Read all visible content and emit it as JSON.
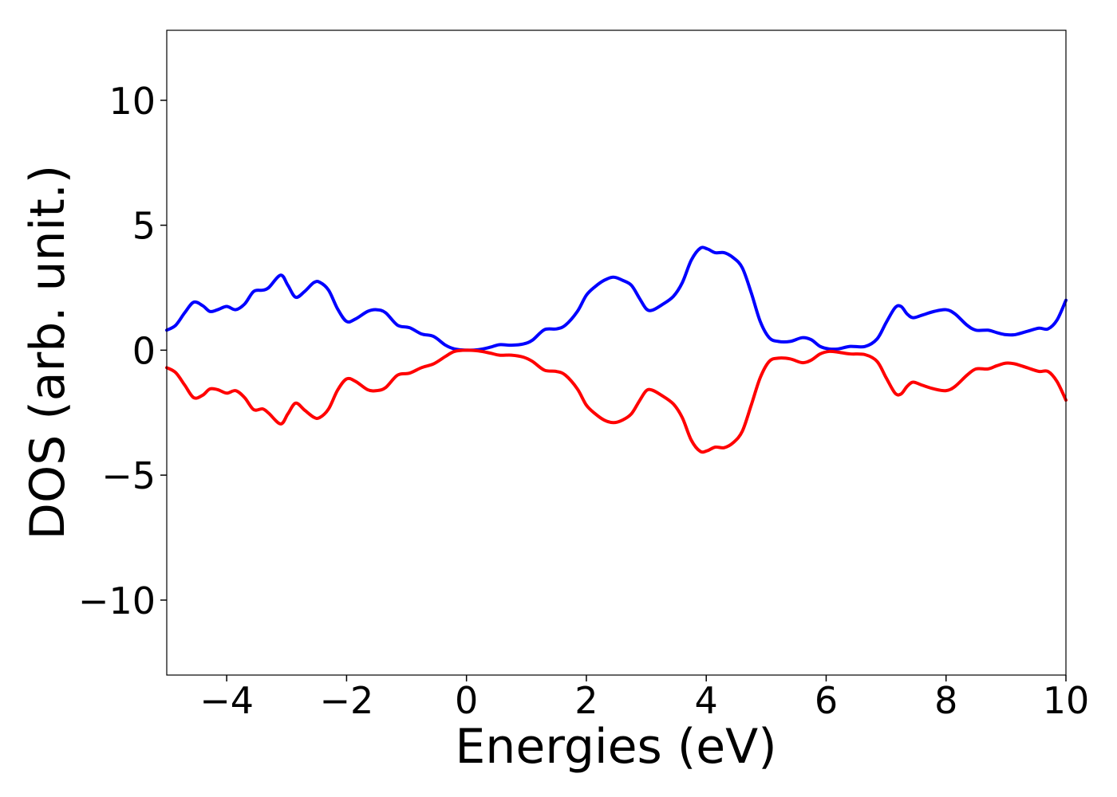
{
  "chart_data": {
    "type": "line",
    "title": "",
    "xlabel": "Energies (eV)",
    "ylabel": "DOS (arb. unit.)",
    "xlim": [
      -5,
      10
    ],
    "ylim": [
      -13,
      12.8
    ],
    "x_ticks": [
      -4,
      -2,
      0,
      2,
      4,
      6,
      8,
      10
    ],
    "x_tick_labels": [
      "−4",
      "−2",
      "0",
      "2",
      "4",
      "6",
      "8",
      "10"
    ],
    "y_ticks": [
      -10,
      -5,
      0,
      5,
      10
    ],
    "y_tick_labels": [
      "−10",
      "−5",
      "0",
      "5",
      "10"
    ],
    "grid": false,
    "legend": "none",
    "series": [
      {
        "color": "#0000ff",
        "points": [
          [
            -5.0,
            0.8
          ],
          [
            -4.85,
            1.0
          ],
          [
            -4.7,
            1.5
          ],
          [
            -4.55,
            1.92
          ],
          [
            -4.4,
            1.78
          ],
          [
            -4.28,
            1.55
          ],
          [
            -4.15,
            1.62
          ],
          [
            -4.0,
            1.75
          ],
          [
            -3.85,
            1.62
          ],
          [
            -3.7,
            1.85
          ],
          [
            -3.55,
            2.35
          ],
          [
            -3.4,
            2.4
          ],
          [
            -3.3,
            2.5
          ],
          [
            -3.1,
            3.0
          ],
          [
            -2.98,
            2.6
          ],
          [
            -2.85,
            2.12
          ],
          [
            -2.7,
            2.35
          ],
          [
            -2.55,
            2.7
          ],
          [
            -2.45,
            2.72
          ],
          [
            -2.3,
            2.4
          ],
          [
            -2.15,
            1.65
          ],
          [
            -2.0,
            1.15
          ],
          [
            -1.85,
            1.25
          ],
          [
            -1.65,
            1.55
          ],
          [
            -1.5,
            1.62
          ],
          [
            -1.35,
            1.5
          ],
          [
            -1.15,
            1.0
          ],
          [
            -0.95,
            0.9
          ],
          [
            -0.75,
            0.65
          ],
          [
            -0.55,
            0.55
          ],
          [
            -0.35,
            0.2
          ],
          [
            -0.2,
            0.05
          ],
          [
            0.0,
            0.0
          ],
          [
            0.2,
            0.02
          ],
          [
            0.4,
            0.12
          ],
          [
            0.55,
            0.22
          ],
          [
            0.75,
            0.2
          ],
          [
            0.95,
            0.25
          ],
          [
            1.1,
            0.4
          ],
          [
            1.3,
            0.82
          ],
          [
            1.5,
            0.85
          ],
          [
            1.65,
            1.0
          ],
          [
            1.85,
            1.55
          ],
          [
            2.0,
            2.2
          ],
          [
            2.15,
            2.55
          ],
          [
            2.3,
            2.8
          ],
          [
            2.45,
            2.92
          ],
          [
            2.6,
            2.8
          ],
          [
            2.75,
            2.6
          ],
          [
            2.88,
            2.1
          ],
          [
            3.0,
            1.65
          ],
          [
            3.1,
            1.6
          ],
          [
            3.25,
            1.8
          ],
          [
            3.45,
            2.15
          ],
          [
            3.6,
            2.7
          ],
          [
            3.75,
            3.6
          ],
          [
            3.9,
            4.08
          ],
          [
            4.02,
            4.05
          ],
          [
            4.15,
            3.9
          ],
          [
            4.3,
            3.9
          ],
          [
            4.45,
            3.7
          ],
          [
            4.6,
            3.3
          ],
          [
            4.75,
            2.3
          ],
          [
            4.9,
            1.15
          ],
          [
            5.05,
            0.5
          ],
          [
            5.2,
            0.35
          ],
          [
            5.4,
            0.35
          ],
          [
            5.6,
            0.5
          ],
          [
            5.75,
            0.42
          ],
          [
            5.9,
            0.15
          ],
          [
            6.05,
            0.05
          ],
          [
            6.2,
            0.05
          ],
          [
            6.4,
            0.15
          ],
          [
            6.65,
            0.15
          ],
          [
            6.85,
            0.45
          ],
          [
            7.0,
            1.1
          ],
          [
            7.15,
            1.7
          ],
          [
            7.25,
            1.75
          ],
          [
            7.35,
            1.45
          ],
          [
            7.45,
            1.3
          ],
          [
            7.6,
            1.4
          ],
          [
            7.8,
            1.55
          ],
          [
            8.0,
            1.62
          ],
          [
            8.15,
            1.45
          ],
          [
            8.35,
            1.0
          ],
          [
            8.5,
            0.8
          ],
          [
            8.7,
            0.8
          ],
          [
            8.85,
            0.7
          ],
          [
            9.0,
            0.62
          ],
          [
            9.15,
            0.62
          ],
          [
            9.35,
            0.75
          ],
          [
            9.55,
            0.88
          ],
          [
            9.7,
            0.85
          ],
          [
            9.85,
            1.2
          ],
          [
            10.0,
            2.0
          ]
        ]
      },
      {
        "color": "#ff0000",
        "points": [
          [
            -5.0,
            -0.7
          ],
          [
            -4.85,
            -0.9
          ],
          [
            -4.7,
            -1.4
          ],
          [
            -4.55,
            -1.9
          ],
          [
            -4.4,
            -1.8
          ],
          [
            -4.28,
            -1.55
          ],
          [
            -4.15,
            -1.58
          ],
          [
            -4.0,
            -1.72
          ],
          [
            -3.85,
            -1.62
          ],
          [
            -3.7,
            -1.9
          ],
          [
            -3.55,
            -2.38
          ],
          [
            -3.4,
            -2.35
          ],
          [
            -3.3,
            -2.52
          ],
          [
            -3.1,
            -2.95
          ],
          [
            -2.98,
            -2.55
          ],
          [
            -2.85,
            -2.12
          ],
          [
            -2.7,
            -2.4
          ],
          [
            -2.55,
            -2.68
          ],
          [
            -2.45,
            -2.7
          ],
          [
            -2.3,
            -2.35
          ],
          [
            -2.15,
            -1.6
          ],
          [
            -2.0,
            -1.15
          ],
          [
            -1.85,
            -1.25
          ],
          [
            -1.65,
            -1.58
          ],
          [
            -1.5,
            -1.62
          ],
          [
            -1.35,
            -1.5
          ],
          [
            -1.15,
            -1.0
          ],
          [
            -0.95,
            -0.92
          ],
          [
            -0.75,
            -0.7
          ],
          [
            -0.55,
            -0.55
          ],
          [
            -0.35,
            -0.25
          ],
          [
            -0.2,
            -0.05
          ],
          [
            0.0,
            0.0
          ],
          [
            0.2,
            -0.03
          ],
          [
            0.4,
            -0.12
          ],
          [
            0.55,
            -0.2
          ],
          [
            0.75,
            -0.2
          ],
          [
            0.95,
            -0.28
          ],
          [
            1.1,
            -0.45
          ],
          [
            1.3,
            -0.8
          ],
          [
            1.5,
            -0.85
          ],
          [
            1.65,
            -1.0
          ],
          [
            1.85,
            -1.55
          ],
          [
            2.0,
            -2.2
          ],
          [
            2.15,
            -2.55
          ],
          [
            2.3,
            -2.8
          ],
          [
            2.45,
            -2.9
          ],
          [
            2.6,
            -2.8
          ],
          [
            2.75,
            -2.55
          ],
          [
            2.88,
            -2.05
          ],
          [
            3.0,
            -1.62
          ],
          [
            3.1,
            -1.6
          ],
          [
            3.25,
            -1.8
          ],
          [
            3.45,
            -2.15
          ],
          [
            3.6,
            -2.7
          ],
          [
            3.75,
            -3.6
          ],
          [
            3.9,
            -4.05
          ],
          [
            4.02,
            -4.02
          ],
          [
            4.15,
            -3.88
          ],
          [
            4.3,
            -3.9
          ],
          [
            4.45,
            -3.7
          ],
          [
            4.6,
            -3.25
          ],
          [
            4.75,
            -2.2
          ],
          [
            4.9,
            -1.1
          ],
          [
            5.05,
            -0.45
          ],
          [
            5.2,
            -0.32
          ],
          [
            5.4,
            -0.35
          ],
          [
            5.6,
            -0.5
          ],
          [
            5.75,
            -0.4
          ],
          [
            5.9,
            -0.15
          ],
          [
            6.05,
            -0.05
          ],
          [
            6.2,
            -0.08
          ],
          [
            6.4,
            -0.15
          ],
          [
            6.65,
            -0.18
          ],
          [
            6.85,
            -0.45
          ],
          [
            7.0,
            -1.1
          ],
          [
            7.15,
            -1.72
          ],
          [
            7.25,
            -1.75
          ],
          [
            7.35,
            -1.45
          ],
          [
            7.45,
            -1.28
          ],
          [
            7.6,
            -1.4
          ],
          [
            7.8,
            -1.55
          ],
          [
            8.0,
            -1.62
          ],
          [
            8.15,
            -1.45
          ],
          [
            8.35,
            -1.0
          ],
          [
            8.5,
            -0.75
          ],
          [
            8.7,
            -0.75
          ],
          [
            8.85,
            -0.62
          ],
          [
            9.0,
            -0.52
          ],
          [
            9.15,
            -0.55
          ],
          [
            9.35,
            -0.7
          ],
          [
            9.55,
            -0.85
          ],
          [
            9.7,
            -0.85
          ],
          [
            9.85,
            -1.25
          ],
          [
            10.0,
            -2.0
          ]
        ]
      }
    ]
  }
}
